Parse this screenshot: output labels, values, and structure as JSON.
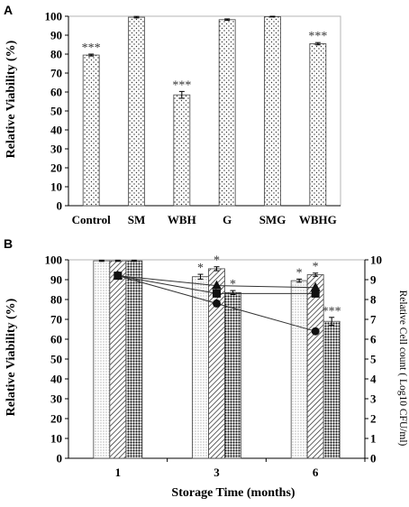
{
  "panel_a": {
    "letter": "A",
    "chart_data": {
      "type": "bar",
      "categories": [
        "Control",
        "SM",
        "WBH",
        "G",
        "SMG",
        "WBHG"
      ],
      "values": [
        79.5,
        99.5,
        58.5,
        98.2,
        99.8,
        85.5
      ],
      "errors": [
        0.5,
        0.4,
        1.8,
        0.4,
        0.2,
        0.6
      ],
      "annotations": [
        "***",
        "",
        "***",
        "",
        "",
        "***"
      ],
      "ylabel": "Relative Viability  (%)",
      "xlabel": "",
      "ylim": [
        0,
        100
      ],
      "yticks": [
        "0",
        "10",
        "20",
        "30",
        "40",
        "50",
        "60",
        "70",
        "80",
        "90",
        "100"
      ],
      "pattern": "dots",
      "grid": false
    }
  },
  "panel_b": {
    "letter": "B",
    "chart_data": {
      "type": "bar",
      "categories": [
        "1",
        "3",
        "6"
      ],
      "xlabel": "Storage Time (months)",
      "ylabel": "Relative Viability  (%)",
      "ylabel_right": "Relative Cell count ( Log10 CFU/ml)",
      "ylim": [
        0,
        100
      ],
      "ylim_right": [
        0,
        10
      ],
      "yticks": [
        "0",
        "10",
        "20",
        "30",
        "40",
        "50",
        "60",
        "70",
        "80",
        "90",
        "100"
      ],
      "yticks_right": [
        "0",
        "1",
        "2",
        "3",
        "4",
        "5",
        "6",
        "7",
        "8",
        "9",
        "10"
      ],
      "series": [
        {
          "pattern": "fine-dots",
          "values": [
            99.5,
            91.5,
            89.5
          ],
          "errors": [
            0.3,
            1.2,
            0.8
          ],
          "annotations": [
            "",
            "*",
            "*"
          ]
        },
        {
          "pattern": "diagonal-lines",
          "values": [
            99.5,
            95.5,
            92.5
          ],
          "errors": [
            0.3,
            1.0,
            0.8
          ],
          "annotations": [
            "",
            "*",
            "*"
          ]
        },
        {
          "pattern": "dense-dots",
          "values": [
            99.5,
            83.5,
            69.0
          ],
          "errors": [
            0.3,
            1.0,
            2.0
          ],
          "annotations": [
            "",
            "*",
            "***"
          ]
        }
      ],
      "line_series": [
        {
          "marker": "square",
          "values": [
            9.2,
            8.3,
            8.3
          ]
        },
        {
          "marker": "triangle",
          "values": [
            9.2,
            8.7,
            8.6
          ]
        },
        {
          "marker": "circle",
          "values": [
            9.2,
            7.8,
            6.4
          ]
        }
      ],
      "grid": false
    }
  }
}
